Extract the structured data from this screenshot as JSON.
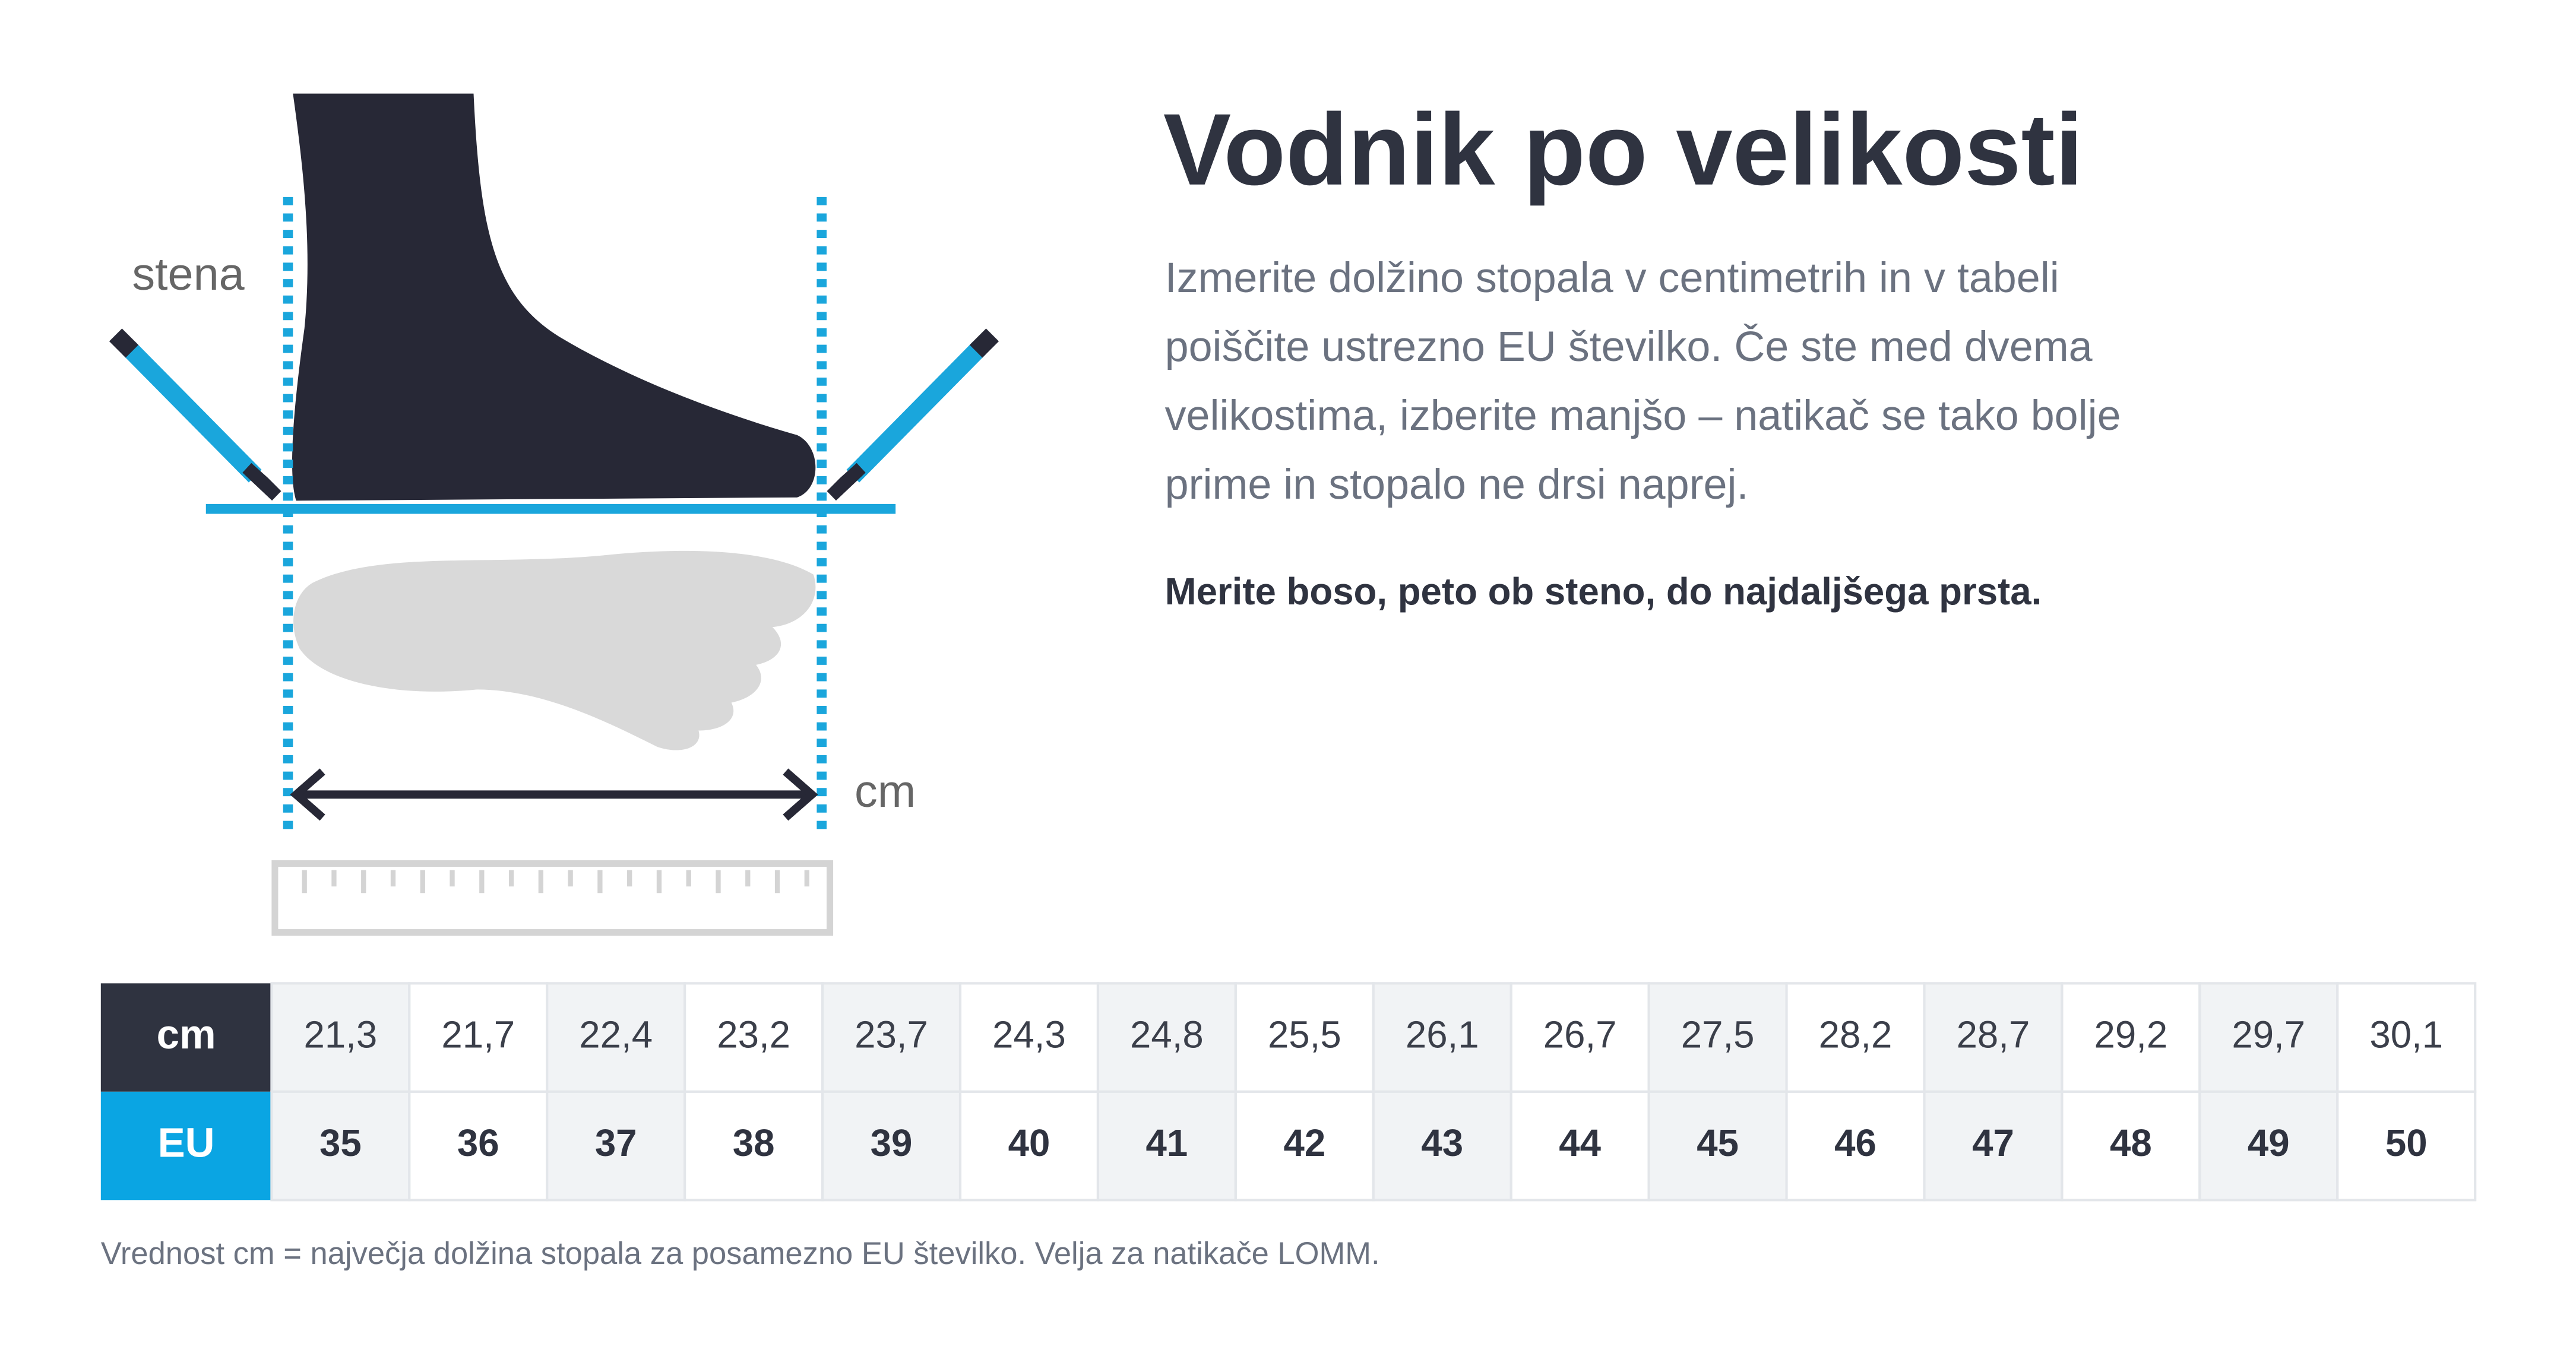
{
  "header": {
    "title": "Vodnik po velikosti",
    "description": [
      "Izmerite dolžino stopala v centimetrih in v tabeli",
      "poiščite ustrezno EU številko. Če ste med dvema",
      "velikostima, izberite manjšo – natikač se tako bolje",
      "prime in stopalo ne drsi naprej."
    ],
    "instruction": "Merite boso, peto ob steno, do najdaljšega prsta."
  },
  "illustration": {
    "wall_label": "stena",
    "length_label": "cm"
  },
  "table": {
    "row_labels": [
      "cm",
      "EU"
    ],
    "rows": [
      [
        "21,3",
        "21,7",
        "22,4",
        "23,2",
        "23,7",
        "24,3",
        "24,8",
        "25,5",
        "26,1",
        "26,7",
        "27,5",
        "28,2",
        "28,7",
        "29,2",
        "29,7",
        "30,1"
      ],
      [
        35,
        36,
        37,
        38,
        39,
        40,
        41,
        42,
        43,
        44,
        45,
        46,
        47,
        48,
        49,
        50
      ]
    ]
  },
  "footnote": "Vrednost cm = največja dolžina stopala za posamezno EU številko. Velja za natikače LOMM."
}
